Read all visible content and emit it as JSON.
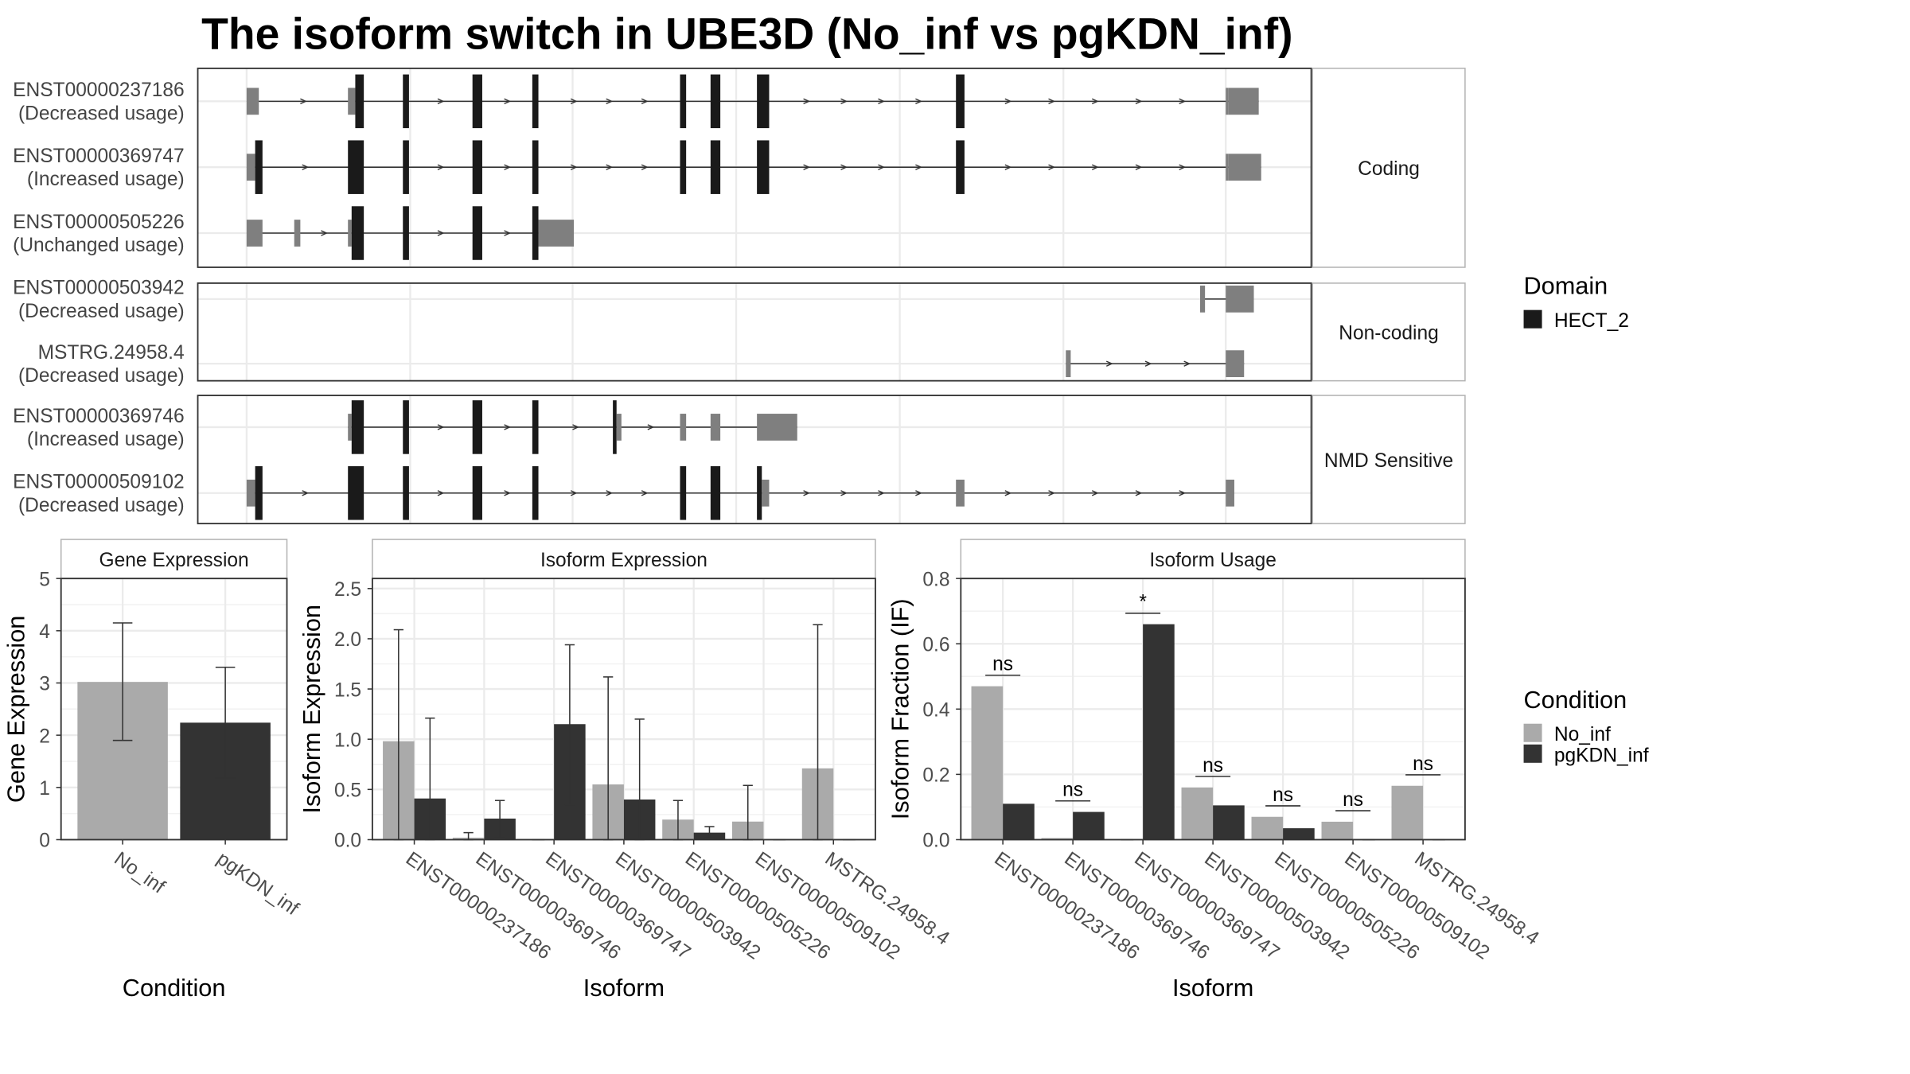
{
  "title": "The isoform switch in UBE3D (No_inf vs pgKDN_inf)",
  "colors": {
    "domain": "#1a1a1a",
    "utr": "#7f7f7f",
    "no_inf": "#aaaaaa",
    "pgkdn_inf": "#333333",
    "grid": "#ebebeb",
    "panel_border": "#333333",
    "strip_border": "#b3b3b3"
  },
  "structure": {
    "groups": [
      {
        "label": "Coding",
        "transcripts": [
          {
            "id": "ENST00000237186",
            "usage": "(Decreased usage)"
          },
          {
            "id": "ENST00000369747",
            "usage": "(Increased usage)"
          },
          {
            "id": "ENST00000505226",
            "usage": "(Unchanged usage)"
          }
        ]
      },
      {
        "label": "Non-coding",
        "transcripts": [
          {
            "id": "ENST00000503942",
            "usage": "(Decreased usage)"
          },
          {
            "id": "MSTRG.24958.4",
            "usage": "(Decreased usage)"
          }
        ]
      },
      {
        "label": "NMD Sensitive",
        "transcripts": [
          {
            "id": "ENST00000369746",
            "usage": "(Increased usage)"
          },
          {
            "id": "ENST00000509102",
            "usage": "(Decreased usage)"
          }
        ]
      }
    ]
  },
  "legend_domain": {
    "title": "Domain",
    "items": [
      {
        "label": "HECT_2",
        "color": "#1a1a1a"
      }
    ]
  },
  "legend_condition": {
    "title": "Condition",
    "items": [
      {
        "label": "No_inf",
        "color": "#aaaaaa"
      },
      {
        "label": "pgKDN_inf",
        "color": "#333333"
      }
    ]
  },
  "chart_data": [
    {
      "type": "bar",
      "title": "Gene Expression",
      "xlabel": "Condition",
      "ylabel": "Gene Expression",
      "ylim": [
        0,
        5
      ],
      "yticks": [
        0,
        1,
        2,
        3,
        4,
        5
      ],
      "categories": [
        "No_inf",
        "pgKDN_inf"
      ],
      "values": [
        3.02,
        2.24
      ],
      "error": [
        [
          1.9,
          4.15
        ],
        [
          1.18,
          3.3
        ]
      ],
      "colors": [
        "#aaaaaa",
        "#333333"
      ]
    },
    {
      "type": "bar",
      "title": "Isoform Expression",
      "xlabel": "Isoform",
      "ylabel": "Isoform Expression",
      "ylim": [
        0,
        2.6
      ],
      "yticks": [
        0.0,
        0.5,
        1.0,
        1.5,
        2.0,
        2.5
      ],
      "categories": [
        "ENST00000237186",
        "ENST00000369746",
        "ENST00000369747",
        "ENST00000503942",
        "ENST00000505226",
        "ENST00000509102",
        "MSTRG.24958.4"
      ],
      "series": [
        {
          "name": "No_inf",
          "values": [
            0.98,
            0.02,
            0.0,
            0.55,
            0.2,
            0.18,
            0.71
          ],
          "error": [
            [
              0,
              2.09
            ],
            [
              0,
              0.07
            ],
            [
              0,
              0
            ],
            [
              0,
              1.62
            ],
            [
              0,
              0.39
            ],
            [
              0,
              0.54
            ],
            [
              0,
              2.14
            ]
          ]
        },
        {
          "name": "pgKDN_inf",
          "values": [
            0.41,
            0.21,
            1.15,
            0.4,
            0.07,
            0.0,
            0.0
          ],
          "error": [
            [
              0,
              1.21
            ],
            [
              0.02,
              0.39
            ],
            [
              0.35,
              1.94
            ],
            [
              0,
              1.2
            ],
            [
              0.02,
              0.13
            ],
            [
              0,
              0
            ],
            [
              0,
              0
            ]
          ]
        }
      ]
    },
    {
      "type": "bar",
      "title": "Isoform Usage",
      "xlabel": "Isoform",
      "ylabel": "Isoform Fraction (IF)",
      "ylim": [
        0,
        0.8
      ],
      "yticks": [
        0.0,
        0.2,
        0.4,
        0.6,
        0.8
      ],
      "categories": [
        "ENST00000237186",
        "ENST00000369746",
        "ENST00000369747",
        "ENST00000503942",
        "ENST00000505226",
        "ENST00000509102",
        "MSTRG.24958.4"
      ],
      "series": [
        {
          "name": "No_inf",
          "values": [
            0.47,
            0.005,
            0.0,
            0.16,
            0.07,
            0.055,
            0.165
          ]
        },
        {
          "name": "pgKDN_inf",
          "values": [
            0.11,
            0.085,
            0.66,
            0.105,
            0.035,
            0.0,
            0.0
          ]
        }
      ],
      "significance": [
        "ns",
        "ns",
        "*",
        "ns",
        "ns",
        "ns",
        "ns"
      ]
    }
  ]
}
